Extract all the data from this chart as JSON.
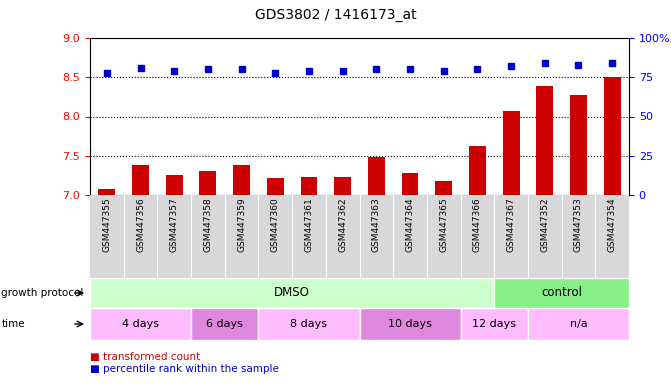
{
  "title": "GDS3802 / 1416173_at",
  "samples": [
    "GSM447355",
    "GSM447356",
    "GSM447357",
    "GSM447358",
    "GSM447359",
    "GSM447360",
    "GSM447361",
    "GSM447362",
    "GSM447363",
    "GSM447364",
    "GSM447365",
    "GSM447366",
    "GSM447367",
    "GSM447352",
    "GSM447353",
    "GSM447354"
  ],
  "transformed_count": [
    7.08,
    7.38,
    7.25,
    7.3,
    7.38,
    7.22,
    7.23,
    7.23,
    7.48,
    7.28,
    7.18,
    7.62,
    8.07,
    8.39,
    8.27,
    8.5
  ],
  "percentile_rank": [
    78,
    81,
    79,
    80,
    80,
    78,
    79,
    79,
    80,
    80,
    79,
    80,
    82,
    84,
    83,
    84
  ],
  "ylim_left": [
    7,
    9
  ],
  "ylim_right": [
    0,
    100
  ],
  "yticks_left": [
    7,
    7.5,
    8,
    8.5,
    9
  ],
  "yticks_right": [
    0,
    25,
    50,
    75,
    100
  ],
  "bar_color": "#cc0000",
  "dot_color": "#0000cc",
  "grid_values": [
    7.5,
    8.0,
    8.5
  ],
  "growth_protocol_label": "growth protocol",
  "time_label": "time",
  "growth_protocol_groups": [
    {
      "label": "DMSO",
      "start": 0,
      "end": 12,
      "color": "#ccffcc"
    },
    {
      "label": "control",
      "start": 12,
      "end": 16,
      "color": "#88ee88"
    }
  ],
  "time_groups": [
    {
      "label": "4 days",
      "start": 0,
      "end": 3,
      "color": "#ffbbff"
    },
    {
      "label": "6 days",
      "start": 3,
      "end": 5,
      "color": "#dd88dd"
    },
    {
      "label": "8 days",
      "start": 5,
      "end": 8,
      "color": "#ffbbff"
    },
    {
      "label": "10 days",
      "start": 8,
      "end": 11,
      "color": "#dd88dd"
    },
    {
      "label": "12 days",
      "start": 11,
      "end": 13,
      "color": "#ffbbff"
    },
    {
      "label": "n/a",
      "start": 13,
      "end": 16,
      "color": "#ffbbff"
    }
  ],
  "legend_items": [
    {
      "label": "transformed count",
      "color": "#cc0000"
    },
    {
      "label": "percentile rank within the sample",
      "color": "#0000cc"
    }
  ],
  "background_color": "#ffffff"
}
